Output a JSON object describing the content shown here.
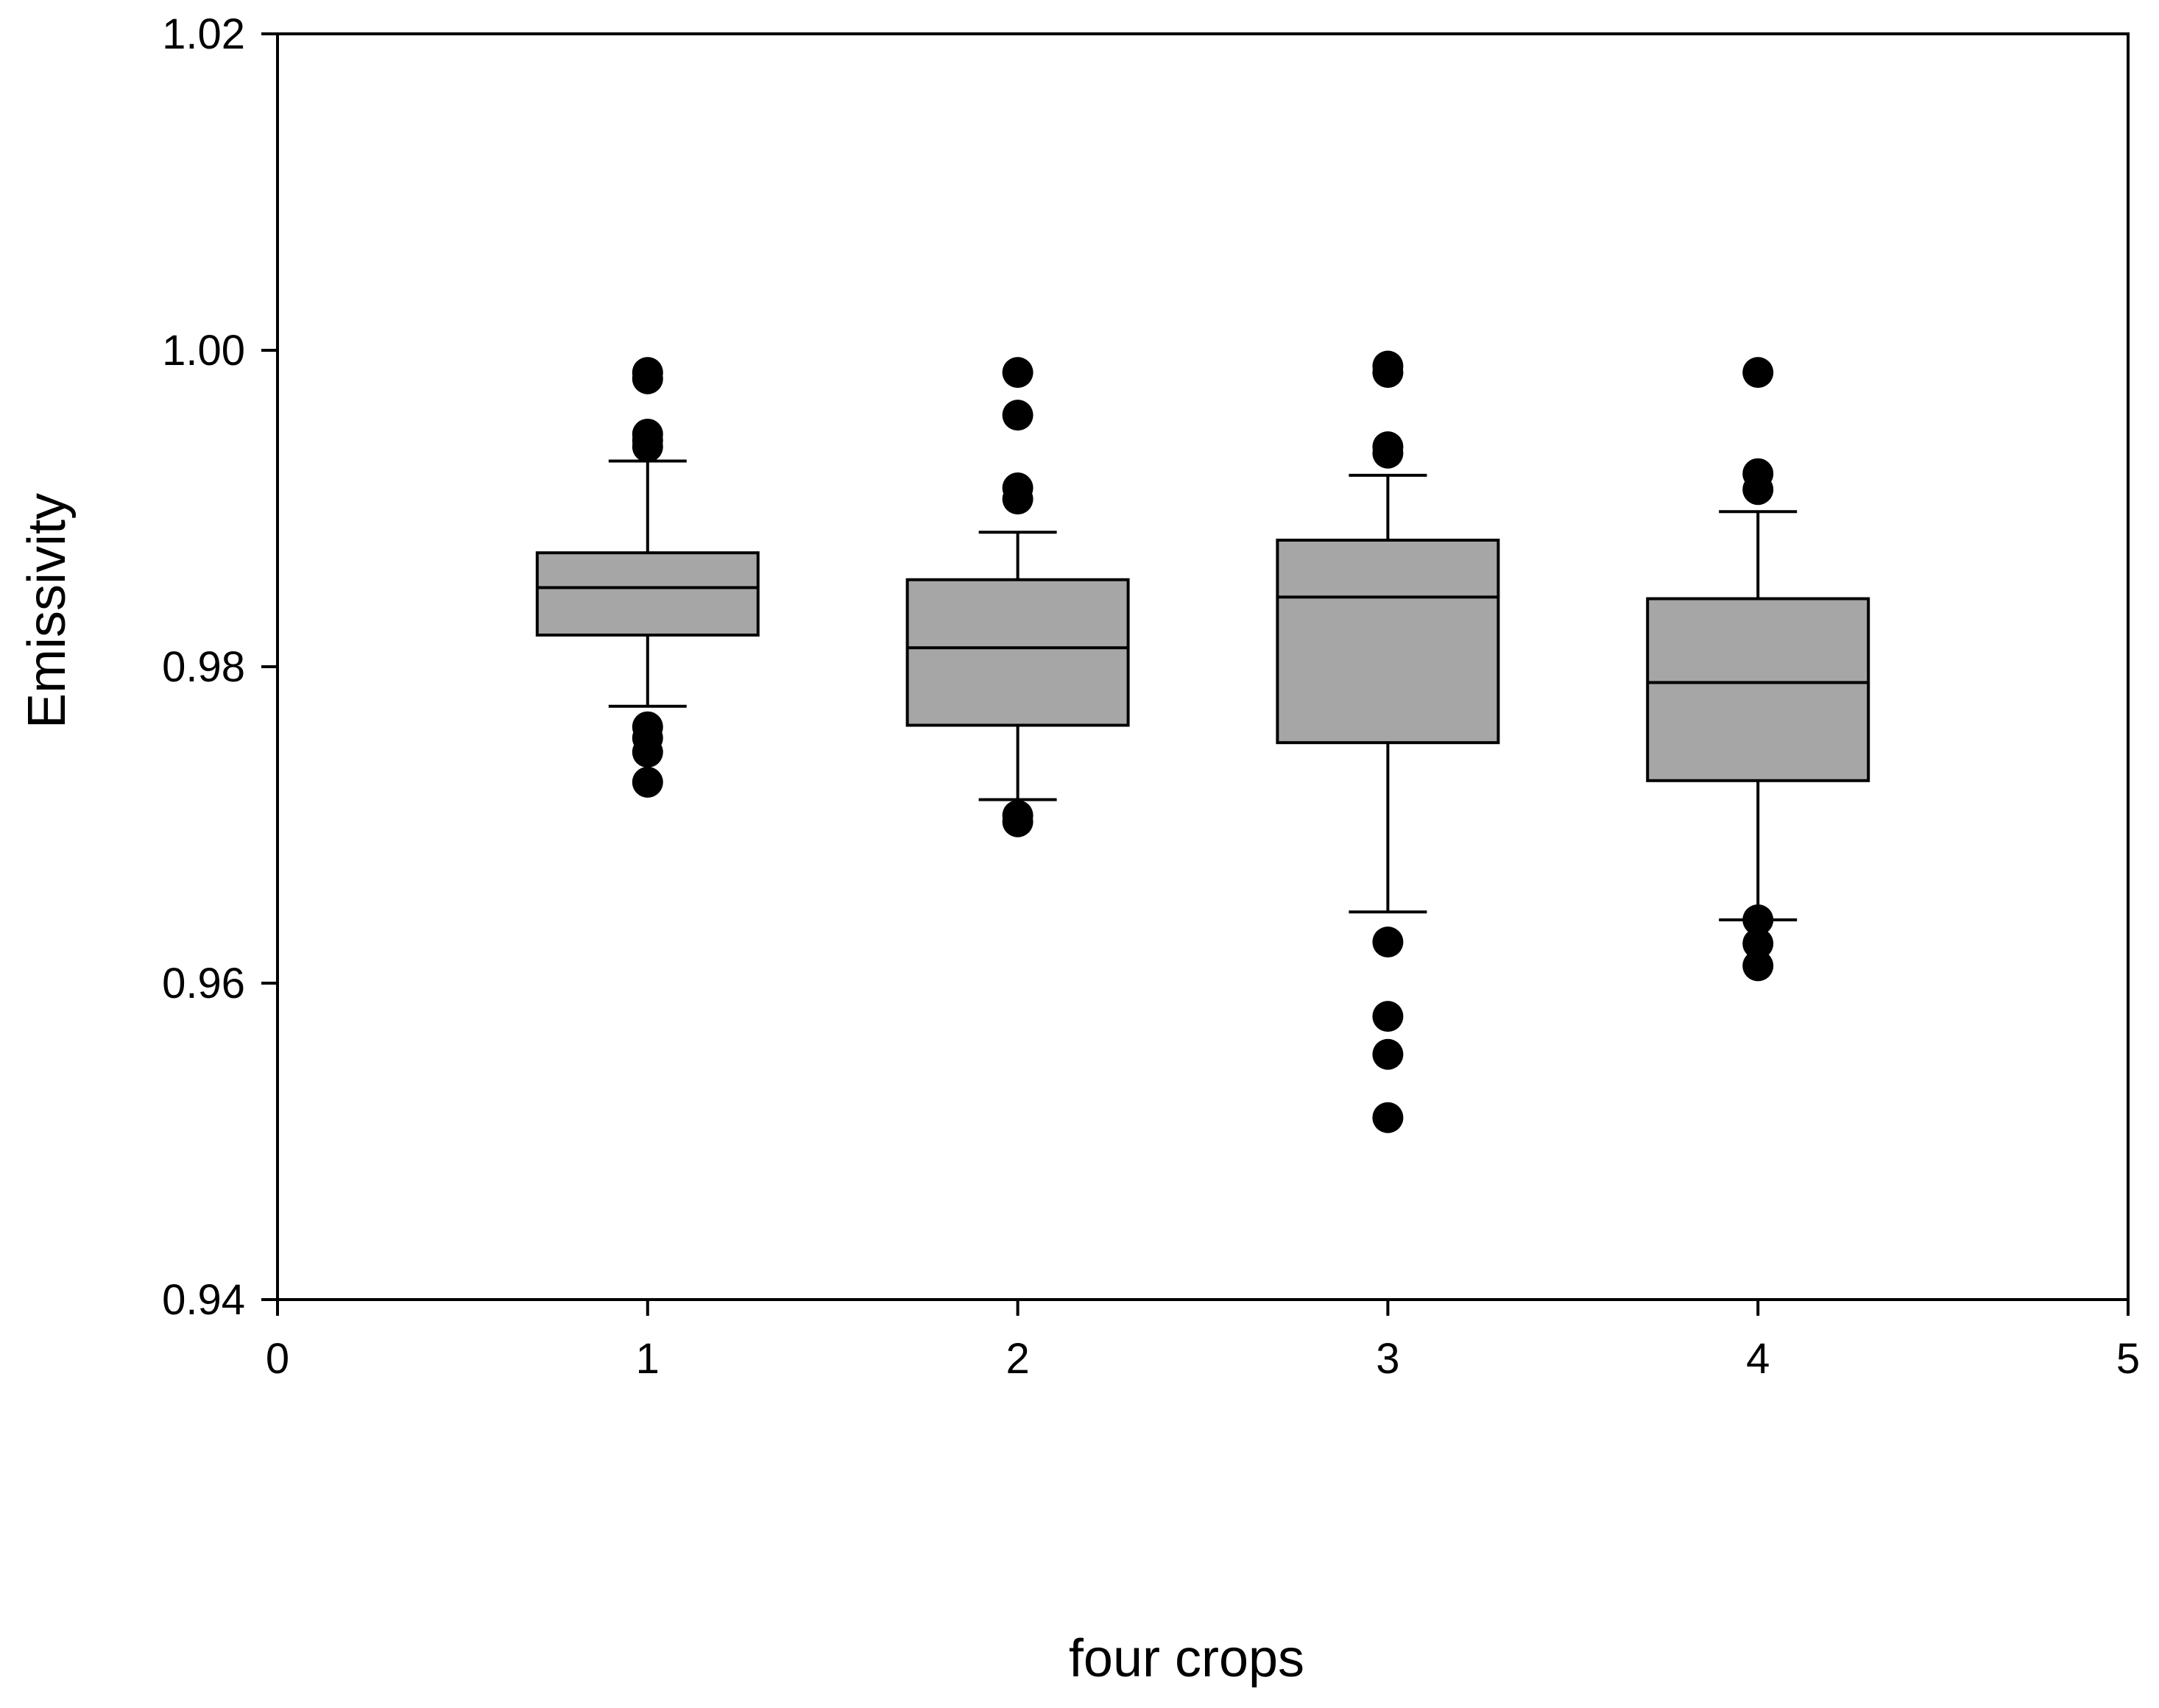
{
  "chart_data": {
    "type": "box",
    "title": "",
    "xlabel": "four crops",
    "ylabel": "Emissivity",
    "xlim": [
      0,
      5
    ],
    "ylim": [
      0.94,
      1.02
    ],
    "x_ticks": [
      "0",
      "1",
      "2",
      "3",
      "4",
      "5"
    ],
    "y_ticks": [
      "0.94",
      "0.96",
      "0.98",
      "1.00",
      "1.02"
    ],
    "grid": false,
    "legend": "none",
    "box_color": "#a6a6a6",
    "line_color": "#000000",
    "boxes": [
      {
        "x": 1,
        "whisker_low": 0.9775,
        "q1": 0.982,
        "median": 0.985,
        "q3": 0.9872,
        "whisker_high": 0.993,
        "outliers": [
          0.9986,
          0.9982,
          0.9947,
          0.9943,
          0.9939,
          0.9762,
          0.9755,
          0.9746,
          0.9727
        ]
      },
      {
        "x": 2,
        "whisker_low": 0.9716,
        "q1": 0.9763,
        "median": 0.9812,
        "q3": 0.9855,
        "whisker_high": 0.9885,
        "outliers": [
          0.9986,
          0.9959,
          0.9913,
          0.9906,
          0.9706,
          0.9702
        ]
      },
      {
        "x": 3,
        "whisker_low": 0.9645,
        "q1": 0.9752,
        "median": 0.9844,
        "q3": 0.988,
        "whisker_high": 0.9921,
        "outliers": [
          0.999,
          0.9986,
          0.9939,
          0.9935,
          0.9626,
          0.9579,
          0.9555,
          0.9515
        ]
      },
      {
        "x": 4,
        "whisker_low": 0.964,
        "q1": 0.9728,
        "median": 0.979,
        "q3": 0.9843,
        "whisker_high": 0.9898,
        "outliers": [
          0.9986,
          0.9922,
          0.9912,
          0.964,
          0.9625,
          0.9611
        ]
      }
    ]
  }
}
